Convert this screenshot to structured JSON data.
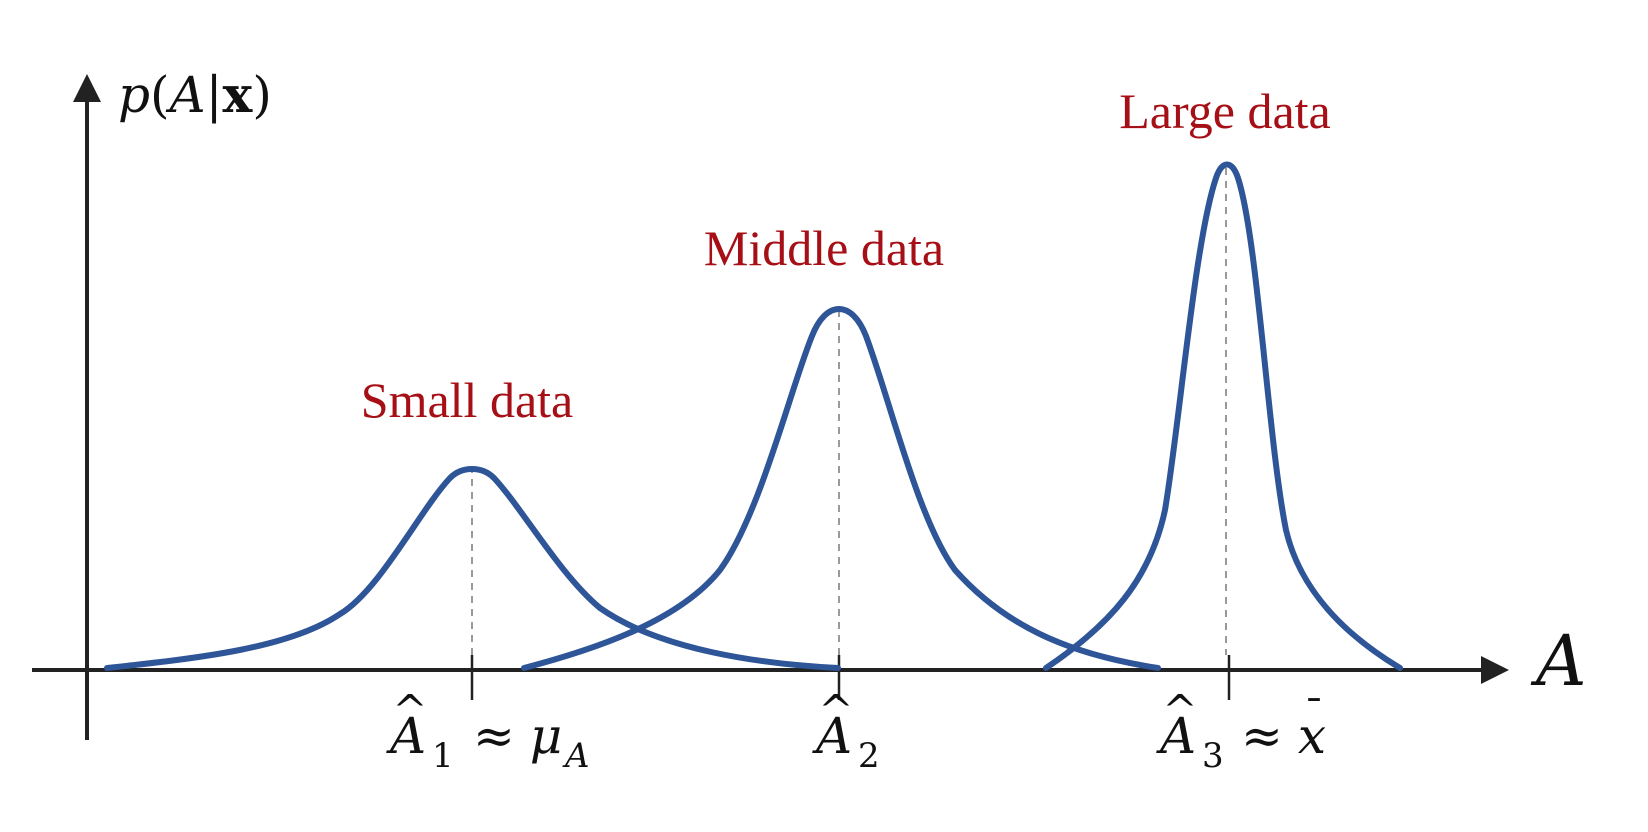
{
  "colors": {
    "axis": "#222222",
    "curve": "#2e5597",
    "label": "#a50f15",
    "guide": "#9a9a9a"
  },
  "axes": {
    "y_label": {
      "p": "p",
      "open": "(",
      "A": "A",
      "bar": "|",
      "x": "x",
      "close": ")"
    },
    "x_label": "A"
  },
  "curves": [
    {
      "name": "Small data"
    },
    {
      "name": "Middle data"
    },
    {
      "name": "Large data"
    }
  ],
  "ticks": [
    {
      "symbol": "A",
      "hat": "^",
      "sub": "1",
      "approx": "≈",
      "rhs": "μ",
      "rhs_sub": "A"
    },
    {
      "symbol": "A",
      "hat": "^",
      "sub": "2"
    },
    {
      "symbol": "A",
      "hat": "^",
      "sub": "3",
      "approx": "≈",
      "rhs": "x",
      "rhs_bar": "¯"
    }
  ]
}
